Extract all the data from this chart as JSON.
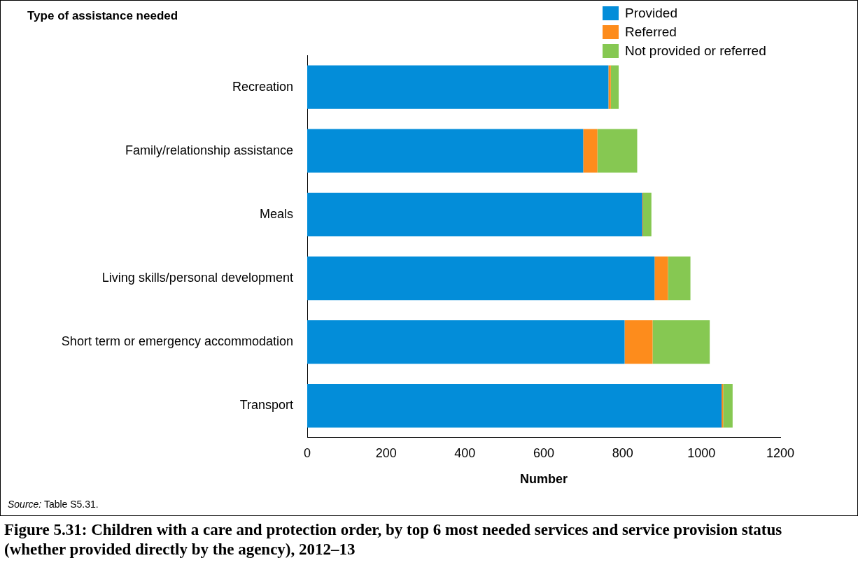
{
  "chart_data": {
    "type": "bar",
    "orientation": "horizontal",
    "stacked": true,
    "title": "Figure 5.31: Children with a care and protection order, by top 6 most needed services and service provision status (whether provided directly by the agency), 2012–13",
    "ylabel": "Type of assistance needed",
    "xlabel": "Number",
    "categories": [
      "Recreation",
      "Family/relationship assistance",
      "Meals",
      "Living skills/personal development",
      "Short term or emergency accommodation",
      "Transport"
    ],
    "series": [
      {
        "name": "Provided",
        "color": "#038dd9",
        "values": [
          764,
          700,
          850,
          881,
          805,
          1051
        ]
      },
      {
        "name": "Referred",
        "color": "#fd8c1c",
        "values": [
          6,
          36,
          2,
          34,
          71,
          4
        ]
      },
      {
        "name": "Not provided or referred",
        "color": "#86c852",
        "values": [
          20,
          101,
          21,
          57,
          145,
          24
        ]
      }
    ],
    "xlim": [
      0,
      1200
    ],
    "xticks": [
      0,
      200,
      400,
      600,
      800,
      1000,
      1200
    ],
    "grid": false,
    "legend": "top right",
    "annotations": [
      "Source: Table S5.31."
    ]
  }
}
